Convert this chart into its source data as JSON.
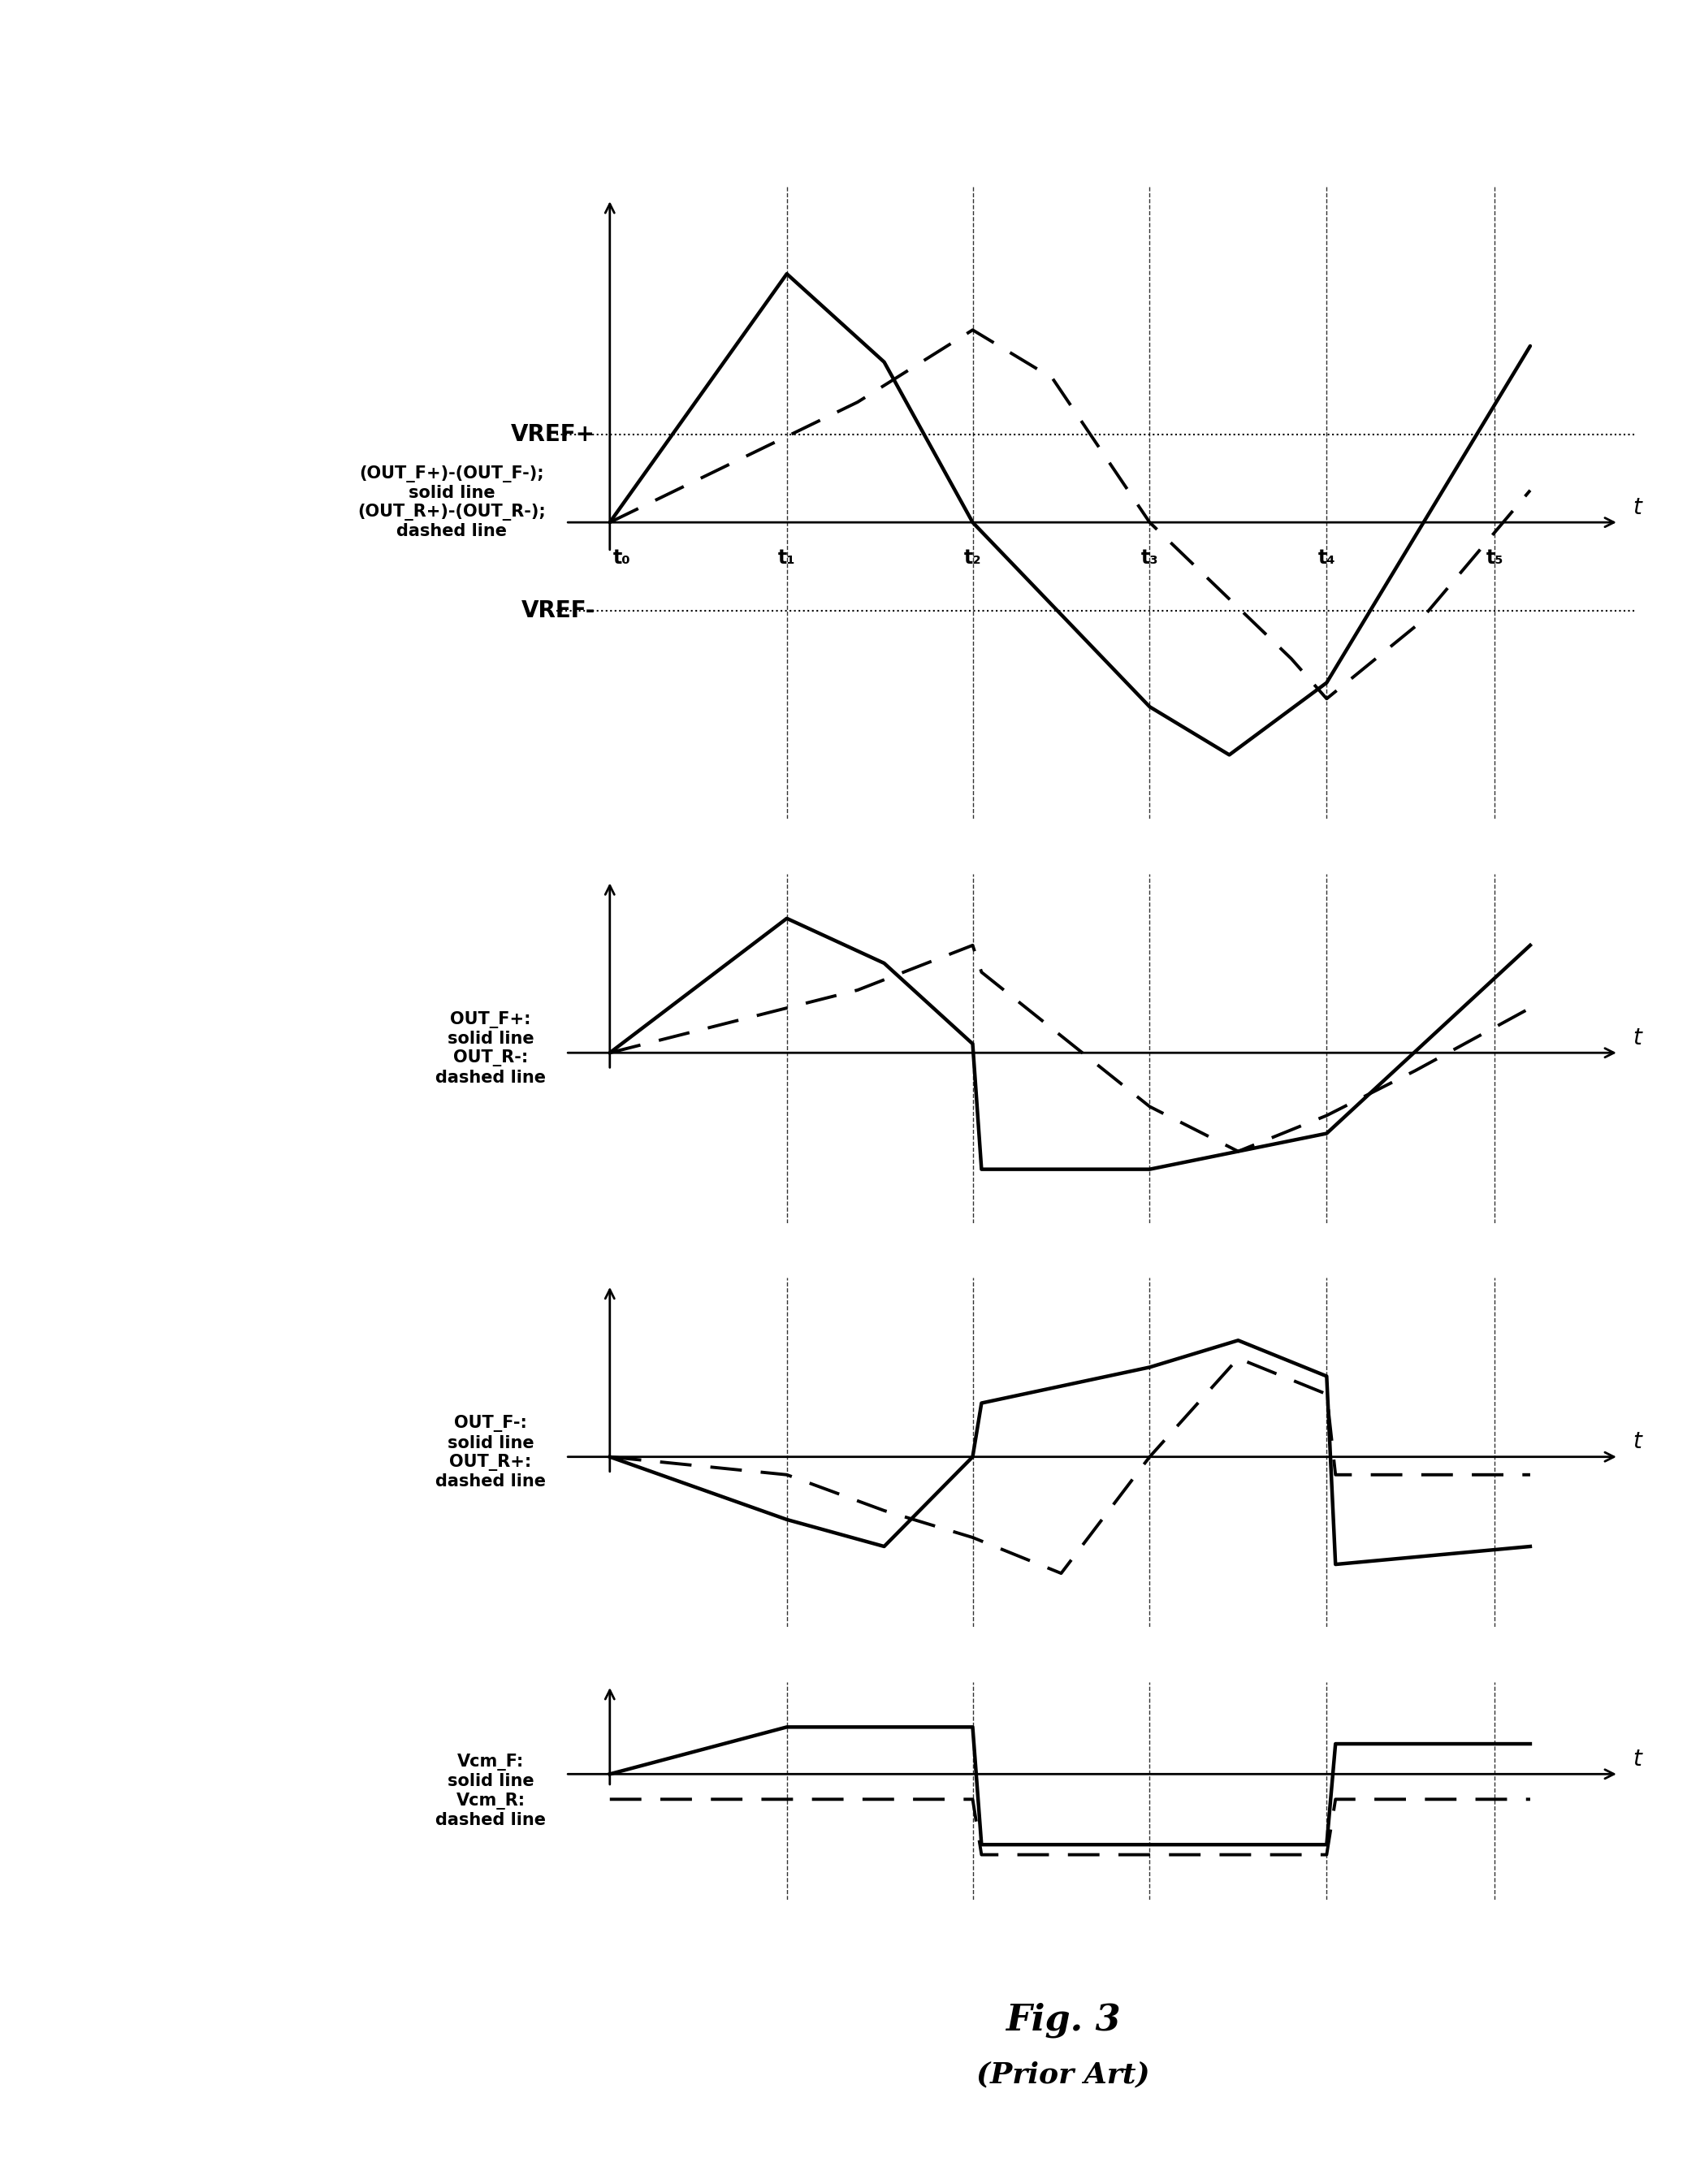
{
  "t_labels": [
    "t₀",
    "t₁",
    "t₂",
    "t₃",
    "t₄",
    "t₅"
  ],
  "vref_plus": 0.55,
  "vref_minus": -0.55,
  "background_color": "#ffffff",
  "figure_title": "Fig. 3",
  "figure_subtitle": "(Prior Art)",
  "panel1": {
    "solid_x": [
      0.0,
      1.0,
      1.55,
      2.05,
      3.05,
      3.5,
      4.05,
      5.2
    ],
    "solid_y": [
      0.0,
      1.55,
      1.0,
      0.0,
      -1.15,
      -1.45,
      -1.0,
      1.1
    ],
    "dashed_x": [
      0.0,
      1.4,
      2.05,
      2.5,
      3.05,
      3.85,
      4.05,
      4.55,
      5.2
    ],
    "dashed_y": [
      0.0,
      0.75,
      1.2,
      0.9,
      0.0,
      -0.85,
      -1.1,
      -0.65,
      0.2
    ]
  },
  "panel2": {
    "solid_x": [
      0.0,
      1.0,
      1.55,
      2.05,
      2.1,
      3.05,
      4.05,
      5.2
    ],
    "solid_y": [
      0.0,
      0.75,
      0.5,
      0.05,
      -0.65,
      -0.65,
      -0.45,
      0.6
    ],
    "dashed_x": [
      0.0,
      1.4,
      2.05,
      2.1,
      3.05,
      3.55,
      4.05,
      4.55,
      5.2
    ],
    "dashed_y": [
      0.0,
      0.35,
      0.6,
      0.45,
      -0.3,
      -0.55,
      -0.35,
      -0.1,
      0.25
    ]
  },
  "panel3": {
    "solid_x": [
      0.0,
      1.0,
      1.55,
      2.05,
      2.1,
      3.05,
      3.55,
      4.05,
      4.1,
      5.2
    ],
    "solid_y": [
      0.0,
      -0.35,
      -0.5,
      0.0,
      0.3,
      0.5,
      0.65,
      0.45,
      -0.6,
      -0.5
    ],
    "dashed_x": [
      0.0,
      1.0,
      1.55,
      2.05,
      2.55,
      3.05,
      3.55,
      4.05,
      4.1,
      5.2
    ],
    "dashed_y": [
      0.0,
      -0.1,
      -0.3,
      -0.45,
      -0.65,
      0.0,
      0.55,
      0.35,
      -0.1,
      -0.1
    ]
  },
  "panel4": {
    "solid_x": [
      0.0,
      1.0,
      2.05,
      2.1,
      4.05,
      4.1,
      5.2
    ],
    "solid_y": [
      0.0,
      0.28,
      0.28,
      -0.42,
      -0.42,
      0.18,
      0.18
    ],
    "dashed_x": [
      0.0,
      2.05,
      2.1,
      4.05,
      4.1,
      5.2
    ],
    "dashed_y": [
      -0.15,
      -0.15,
      -0.48,
      -0.48,
      -0.15,
      -0.15
    ]
  }
}
